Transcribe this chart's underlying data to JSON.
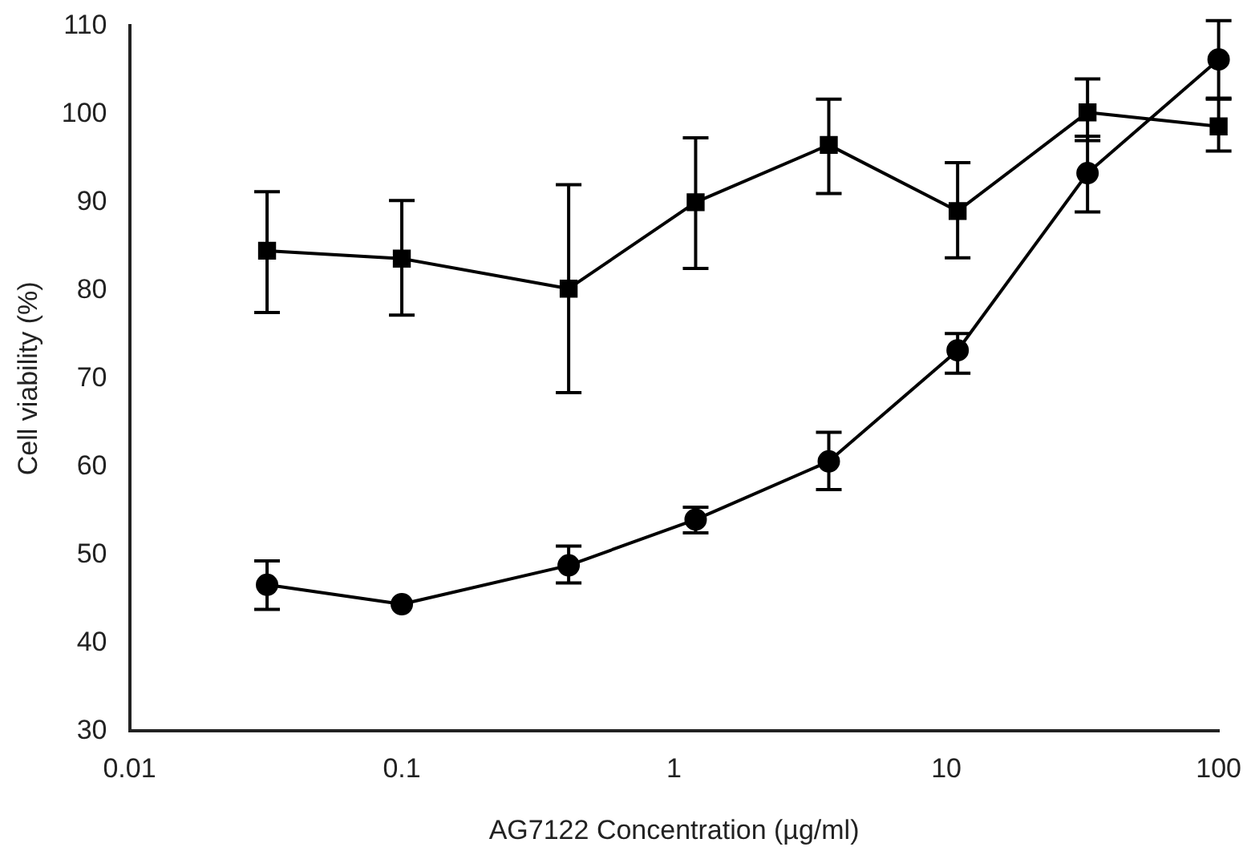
{
  "chart_data": {
    "type": "line",
    "xlabel": "AG7122 Concentration (µg/ml)",
    "ylabel": "Cell viability (%)",
    "log": "x",
    "grid": false,
    "legend": false,
    "line_style": "solid",
    "xlim": [
      0.01,
      100
    ],
    "xticks": [
      0.01,
      0.1,
      1,
      10,
      100
    ],
    "ylim": [
      30,
      110
    ],
    "yticks": [
      30,
      40,
      50,
      60,
      70,
      80,
      90,
      100,
      110
    ],
    "x": [
      0.032,
      0.1,
      0.41,
      1.2,
      3.7,
      11,
      33,
      100
    ],
    "series": [
      {
        "color": "#000000",
        "marker": "square",
        "values": [
          84.5,
          83.6,
          80.2,
          90,
          96.5,
          89,
          100.2,
          98.6
        ],
        "errors": [
          [
            77.5,
            91.2
          ],
          [
            77.2,
            90.2
          ],
          [
            68.4,
            92
          ],
          [
            82.5,
            97.3
          ],
          [
            91,
            101.7
          ],
          [
            83.7,
            94.5
          ],
          [
            97,
            104
          ],
          [
            95.8,
            101.8
          ]
        ]
      },
      {
        "color": "#000000",
        "marker": "circle",
        "values": [
          46.6,
          44.4,
          48.8,
          54,
          60.6,
          73.2,
          93.3,
          106.2
        ],
        "errors": [
          [
            43.8,
            49.3
          ],
          null,
          [
            46.8,
            51
          ],
          [
            52.5,
            55.4
          ],
          [
            57.4,
            63.9
          ],
          [
            70.6,
            75.1
          ],
          [
            88.9,
            97.5
          ],
          [
            101.7,
            110.6
          ]
        ]
      }
    ]
  }
}
